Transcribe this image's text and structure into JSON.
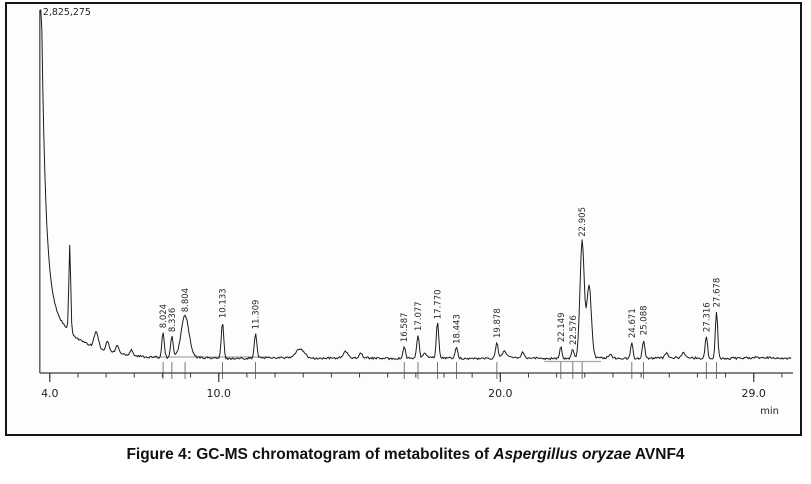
{
  "figure_panel": {
    "top_left_intensity_label": "2,825,275",
    "x_axis_unit": "min"
  },
  "caption": {
    "prefix": "Figure 4: GC-MS chromatogram of metabolites of ",
    "italic": "Aspergillus oryzae",
    "suffix": " AVNF4"
  },
  "chart_data": {
    "type": "line",
    "title": "GC-MS chromatogram of metabolites of Aspergillus oryzae AVNF4",
    "xlabel": "min",
    "ylabel": "",
    "x_axis_range_min": [
      3.65,
      30.3
    ],
    "x_major_ticks": [
      {
        "t": 4.0,
        "label": "4.0"
      },
      {
        "t": 10.0,
        "label": "10.0"
      },
      {
        "t": 20.0,
        "label": "20.0"
      },
      {
        "t": 29.0,
        "label": "29.0"
      }
    ],
    "x_minor_tick_interval_min": 1.0,
    "y_full_scale_intensity_label": "2,825,275",
    "solvent_front": {
      "rt_min": 3.9,
      "clipped_at_top": true
    },
    "early_spike": {
      "rt": 4.71,
      "rel_height": 0.25
    },
    "peaks": [
      {
        "rt": 8.024,
        "label": "8.024",
        "rel_height": 0.074,
        "shape": "narrow"
      },
      {
        "rt": 8.336,
        "label": "8.336",
        "rel_height": 0.063,
        "shape": "narrow"
      },
      {
        "rt": 8.804,
        "label": "8.804",
        "rel_height": 0.12,
        "shape": "broad"
      },
      {
        "rt": 10.133,
        "label": "10.133",
        "rel_height": 0.103,
        "shape": "narrow"
      },
      {
        "rt": 11.309,
        "label": "11.309",
        "rel_height": 0.071,
        "shape": "narrow"
      },
      {
        "rt": 16.587,
        "label": "16.587",
        "rel_height": 0.034,
        "shape": "narrow"
      },
      {
        "rt": 17.077,
        "label": "17.077",
        "rel_height": 0.066,
        "shape": "narrow"
      },
      {
        "rt": 17.77,
        "label": "17.770",
        "rel_height": 0.1,
        "shape": "narrow"
      },
      {
        "rt": 18.443,
        "label": "18.443",
        "rel_height": 0.029,
        "shape": "narrow"
      },
      {
        "rt": 19.878,
        "label": "19.878",
        "rel_height": 0.046,
        "shape": "narrow"
      },
      {
        "rt": 22.149,
        "label": "22.149",
        "rel_height": 0.034,
        "shape": "narrow"
      },
      {
        "rt": 22.576,
        "label": "22.576",
        "rel_height": 0.026,
        "shape": "narrow"
      },
      {
        "rt": 22.905,
        "label": "22.905",
        "rel_height": 0.337,
        "shape": "big"
      },
      {
        "rt": 24.671,
        "label": "24.671",
        "rel_height": 0.046,
        "shape": "narrow"
      },
      {
        "rt": 25.088,
        "label": "25.088",
        "rel_height": 0.054,
        "shape": "narrow"
      },
      {
        "rt": 27.316,
        "label": "27.316",
        "rel_height": 0.063,
        "shape": "narrow"
      },
      {
        "rt": 27.678,
        "label": "27.678",
        "rel_height": 0.134,
        "shape": "narrow"
      }
    ],
    "main_peak_shoulder": {
      "rt_offset_of": 22.905,
      "rel_height": 0.21
    },
    "unlabeled_bumps": [
      {
        "rt": 5.65,
        "rel_height": 0.046,
        "w": 3
      },
      {
        "rt": 6.05,
        "rel_height": 0.029,
        "w": 2
      },
      {
        "rt": 6.4,
        "rel_height": 0.023,
        "w": 2
      },
      {
        "rt": 6.9,
        "rel_height": 0.017,
        "w": 2
      },
      {
        "rt": 12.9,
        "rel_height": 0.028,
        "w": 6
      },
      {
        "rt": 14.5,
        "rel_height": 0.017,
        "w": 3
      },
      {
        "rt": 15.05,
        "rel_height": 0.014,
        "w": 2
      },
      {
        "rt": 17.32,
        "rel_height": 0.014,
        "w": 2
      },
      {
        "rt": 20.15,
        "rel_height": 0.02,
        "w": 3
      },
      {
        "rt": 20.8,
        "rel_height": 0.017,
        "w": 2
      },
      {
        "rt": 23.9,
        "rel_height": 0.011,
        "w": 2
      },
      {
        "rt": 25.9,
        "rel_height": 0.014,
        "w": 2
      },
      {
        "rt": 26.5,
        "rel_height": 0.017,
        "w": 2
      }
    ],
    "legend": null,
    "grid": false
  }
}
